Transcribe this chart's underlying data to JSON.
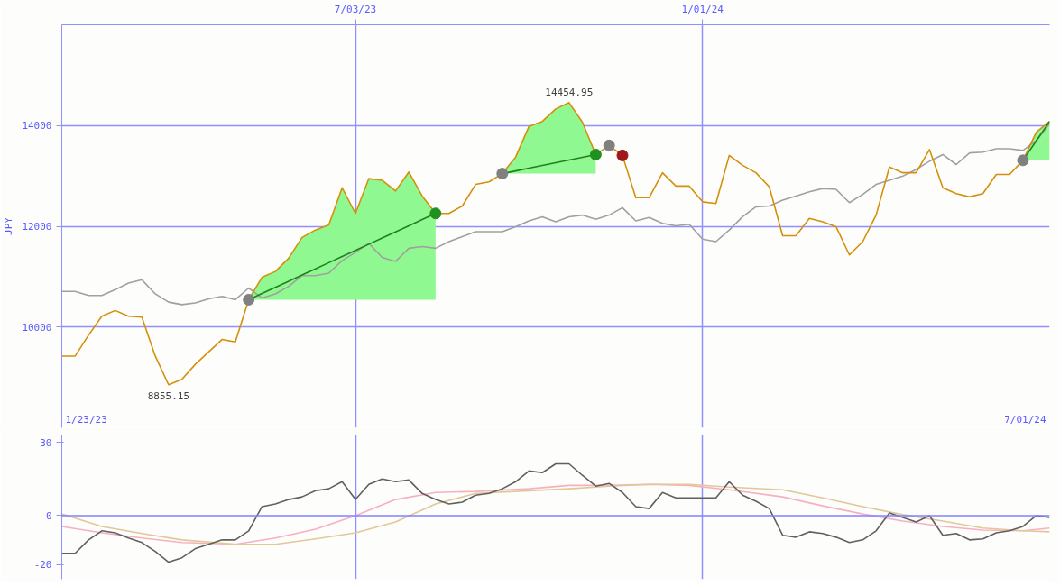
{
  "chart_data": [
    {
      "type": "line",
      "ylabel": "JPY",
      "x": [
        "2023-01-30",
        "2023-02-06",
        "2023-02-13",
        "2023-02-20",
        "2023-02-27",
        "2023-03-06",
        "2023-03-13",
        "2023-03-20",
        "2023-03-27",
        "2023-04-03",
        "2023-04-10",
        "2023-04-17",
        "2023-04-24",
        "2023-05-01",
        "2023-05-08",
        "2023-05-15",
        "2023-05-22",
        "2023-05-29",
        "2023-06-05",
        "2023-06-12",
        "2023-06-19",
        "2023-06-26",
        "2023-07-03",
        "2023-07-10",
        "2023-07-17",
        "2023-07-24",
        "2023-07-31",
        "2023-08-07",
        "2023-08-14",
        "2023-08-21",
        "2023-08-28",
        "2023-09-04",
        "2023-09-11",
        "2023-09-18",
        "2023-09-25",
        "2023-10-02",
        "2023-10-09",
        "2023-10-16",
        "2023-10-23",
        "2023-10-30",
        "2023-11-06",
        "2023-11-13",
        "2023-11-20",
        "2023-11-27",
        "2023-12-04",
        "2023-12-11",
        "2023-12-18",
        "2023-12-25",
        "2024-01-01",
        "2024-01-08",
        "2024-01-15",
        "2024-01-22",
        "2024-01-29",
        "2024-02-05",
        "2024-02-12",
        "2024-02-19",
        "2024-02-26",
        "2024-03-04",
        "2024-03-11",
        "2024-03-18",
        "2024-03-25",
        "2024-04-01",
        "2024-04-08",
        "2024-04-15",
        "2024-04-22",
        "2024-04-29",
        "2024-05-06",
        "2024-05-13",
        "2024-05-20",
        "2024-05-27",
        "2024-06-03",
        "2024-06-10",
        "2024-06-17",
        "2024-06-24",
        "2024-07-01"
      ],
      "xlim": [
        "2023-01-30",
        "2024-07-01"
      ],
      "xticks": [
        {
          "value": "2023-07-03",
          "label": "7/03/23"
        },
        {
          "value": "2024-01-01",
          "label": "1/01/24"
        }
      ],
      "ylim": [
        8000,
        16000
      ],
      "yticks": [
        10000,
        12000,
        14000
      ],
      "grid": true,
      "annotations": [
        {
          "text": "14454.95",
          "x": "2023-10-23",
          "y": 14455
        },
        {
          "text": "8855.15",
          "x": "2023-03-27",
          "y": 8855
        },
        "1/23/23",
        "7/01/24"
      ],
      "series": [
        {
          "type": "line",
          "color": "#a0a0a0",
          "values": [
            10708,
            10708,
            10626,
            10626,
            10741,
            10873,
            10938,
            10659,
            10494,
            10445,
            10478,
            10560,
            10609,
            10543,
            10774,
            10576,
            10659,
            10807,
            11021,
            11021,
            11070,
            11317,
            11482,
            11663,
            11383,
            11301,
            11564,
            11597,
            11564,
            11696,
            11794,
            11893,
            11893,
            11893,
            11992,
            12107,
            12189,
            12091,
            12189,
            12222,
            12140,
            12222,
            12370,
            12107,
            12173,
            12058,
            12008,
            12041,
            11745,
            11696,
            11926,
            12189,
            12387,
            12403,
            12519,
            12601,
            12683,
            12749,
            12733,
            12469,
            12634,
            12831,
            12914,
            12996,
            13128,
            13292,
            13424,
            13226,
            13457,
            13473,
            13539,
            13539,
            13506,
            13704,
            14033
          ]
        },
        {
          "type": "line",
          "color": "#d4900a",
          "values": [
            9424,
            9424,
            9836,
            10214,
            10329,
            10214,
            10198,
            9424,
            8855,
            8963,
            9260,
            9506,
            9753,
            9704,
            10543,
            10988,
            11103,
            11366,
            11778,
            11926,
            12025,
            12765,
            12255,
            12947,
            12914,
            12700,
            13078,
            12601,
            12255,
            12255,
            12403,
            12831,
            12881,
            13045,
            13375,
            13984,
            14082,
            14329,
            14455,
            14066,
            13424,
            13605,
            13407,
            12568,
            12568,
            13062,
            12798,
            12798,
            12486,
            12453,
            13407,
            13210,
            13062,
            12782,
            11811,
            11811,
            12156,
            12091,
            11992,
            11432,
            11696,
            12222,
            13177,
            13062,
            13062,
            13523,
            12765,
            12650,
            12584,
            12650,
            13029,
            13029,
            13309,
            13868,
            14082
          ]
        },
        {
          "type": "line",
          "color": "#208020",
          "x": [
            "2023-05-08",
            "2023-05-15",
            "2023-05-22",
            "2023-05-29",
            "2023-06-05",
            "2023-06-12",
            "2023-06-19",
            "2023-06-26",
            "2023-07-03",
            "2023-07-10",
            "2023-07-17",
            "2023-07-24",
            "2023-07-31",
            "2023-08-07",
            "2023-08-14"
          ],
          "values": [
            10543,
            10665,
            10788,
            10910,
            11032,
            11154,
            11277,
            11399,
            11521,
            11644,
            11766,
            11888,
            12010,
            12133,
            12255
          ],
          "lower": [
            10543,
            10543,
            10543,
            10543,
            10543,
            10543,
            10543,
            10543,
            10543,
            10543,
            10543,
            10543,
            10543,
            10543,
            10543
          ],
          "upper": [
            10543,
            10988,
            11103,
            11366,
            11778,
            11926,
            12025,
            12765,
            12255,
            12947,
            12914,
            12700,
            13078,
            12601,
            12255
          ]
        },
        {
          "type": "line",
          "color": "#208020",
          "x": [
            "2023-09-18",
            "2023-09-25",
            "2023-10-02",
            "2023-10-09",
            "2023-10-16",
            "2023-10-23",
            "2023-10-30",
            "2023-11-06"
          ],
          "values": [
            13045,
            13099,
            13153,
            13207,
            13262,
            13316,
            13370,
            13424
          ],
          "lower": [
            13045,
            13045,
            13045,
            13045,
            13045,
            13045,
            13045,
            13045
          ],
          "upper": [
            13045,
            13375,
            13984,
            14082,
            14329,
            14455,
            14066,
            13424
          ]
        },
        {
          "type": "line",
          "color": "#208020",
          "x": [
            "2024-06-17",
            "2024-06-24",
            "2024-07-01"
          ],
          "values": [
            13309,
            13696,
            14082
          ],
          "lower": [
            13309,
            13309,
            13309
          ],
          "upper": [
            13309,
            13868,
            14082
          ]
        },
        {
          "type": "scatter",
          "marker": "circle",
          "color": "#808080",
          "x": [
            "2023-05-08",
            "2023-09-18",
            "2023-11-13",
            "2024-06-17"
          ],
          "values": [
            10543,
            13045,
            13605,
            13309
          ]
        },
        {
          "type": "scatter",
          "marker": "circle",
          "color": "#209020",
          "x": [
            "2023-08-14",
            "2023-11-06"
          ],
          "values": [
            12255,
            13424
          ]
        },
        {
          "type": "scatter",
          "marker": "circle",
          "color": "#a01818",
          "x": [
            "2023-11-20"
          ],
          "values": [
            13407
          ]
        }
      ]
    },
    {
      "type": "line",
      "x": [
        "2023-01-30",
        "2023-02-06",
        "2023-02-13",
        "2023-02-20",
        "2023-02-27",
        "2023-03-06",
        "2023-03-13",
        "2023-03-20",
        "2023-03-27",
        "2023-04-03",
        "2023-04-10",
        "2023-04-17",
        "2023-04-24",
        "2023-05-01",
        "2023-05-08",
        "2023-05-15",
        "2023-05-22",
        "2023-05-29",
        "2023-06-05",
        "2023-06-12",
        "2023-06-19",
        "2023-06-26",
        "2023-07-03",
        "2023-07-10",
        "2023-07-17",
        "2023-07-24",
        "2023-07-31",
        "2023-08-07",
        "2023-08-14",
        "2023-08-21",
        "2023-08-28",
        "2023-09-04",
        "2023-09-11",
        "2023-09-18",
        "2023-09-25",
        "2023-10-02",
        "2023-10-09",
        "2023-10-16",
        "2023-10-23",
        "2023-10-30",
        "2023-11-06",
        "2023-11-13",
        "2023-11-20",
        "2023-11-27",
        "2023-12-04",
        "2023-12-11",
        "2023-12-18",
        "2023-12-25",
        "2024-01-01",
        "2024-01-08",
        "2024-01-15",
        "2024-01-22",
        "2024-01-29",
        "2024-02-05",
        "2024-02-12",
        "2024-02-19",
        "2024-02-26",
        "2024-03-04",
        "2024-03-11",
        "2024-03-18",
        "2024-03-25",
        "2024-04-01",
        "2024-04-08",
        "2024-04-15",
        "2024-04-22",
        "2024-04-29",
        "2024-05-06",
        "2024-05-13",
        "2024-05-20",
        "2024-05-27",
        "2024-06-03",
        "2024-06-10",
        "2024-06-17",
        "2024-06-24",
        "2024-07-01"
      ],
      "xlim": [
        "2023-01-30",
        "2024-07-01"
      ],
      "xticks": [
        {
          "value": "2023-07-03",
          "label": null
        },
        {
          "value": "2024-01-01",
          "label": null
        }
      ],
      "ylim": [
        -26,
        33
      ],
      "yticks": [
        -20,
        0,
        30
      ],
      "grid": "x",
      "tick_labels": "y",
      "ref_lines": [
        {
          "axis": "y",
          "value": 0,
          "color": "#8080ff"
        }
      ],
      "series": [
        {
          "color": "#f8b0c0",
          "x": [
            "2023-01-30",
            "2023-02-20",
            "2023-03-13",
            "2023-04-03",
            "2023-05-01",
            "2023-05-22",
            "2023-06-12",
            "2023-07-03",
            "2023-07-24",
            "2023-08-14",
            "2023-09-04",
            "2023-10-02",
            "2023-10-23",
            "2023-11-13",
            "2023-12-04",
            "2023-12-25",
            "2024-01-15",
            "2024-02-12",
            "2024-03-04",
            "2024-03-25",
            "2024-04-15",
            "2024-05-06",
            "2024-05-27",
            "2024-06-17",
            "2024-07-01"
          ],
          "values": [
            -4.4,
            -7.0,
            -9.1,
            -11.0,
            -11.7,
            -9.1,
            -5.5,
            0,
            6.6,
            9.5,
            9.9,
            11.0,
            12.4,
            12.4,
            12.8,
            12.4,
            10.6,
            7.7,
            4.0,
            0.7,
            -2.2,
            -4.4,
            -5.9,
            -6.2,
            -5.1
          ]
        },
        {
          "color": "#e0c898",
          "x": [
            "2023-01-30",
            "2023-02-20",
            "2023-03-13",
            "2023-04-03",
            "2023-05-01",
            "2023-05-22",
            "2023-06-12",
            "2023-07-03",
            "2023-07-24",
            "2023-08-14",
            "2023-09-04",
            "2023-10-02",
            "2023-10-23",
            "2023-11-13",
            "2023-12-04",
            "2023-12-25",
            "2024-01-15",
            "2024-02-12",
            "2024-03-04",
            "2024-03-25",
            "2024-04-15",
            "2024-05-06",
            "2024-05-27",
            "2024-06-17",
            "2024-07-01"
          ],
          "values": [
            0.7,
            -4.4,
            -7.3,
            -9.9,
            -11.7,
            -11.7,
            -9.5,
            -7.0,
            -2.6,
            4.8,
            9.1,
            10.2,
            11.0,
            12.1,
            12.8,
            12.8,
            11.7,
            10.6,
            7.3,
            3.7,
            0.4,
            -2.2,
            -5.1,
            -6.2,
            -6.6
          ]
        },
        {
          "color": "#606060",
          "values": [
            -15.4,
            -15.4,
            -9.9,
            -6.2,
            -7.0,
            -9.1,
            -11.0,
            -14.6,
            -19.0,
            -17.2,
            -13.5,
            -11.7,
            -9.9,
            -9.9,
            -6.2,
            3.7,
            4.8,
            6.6,
            7.7,
            10.2,
            11.0,
            13.9,
            6.6,
            12.8,
            15.0,
            13.9,
            14.6,
            9.1,
            6.6,
            4.8,
            5.5,
            8.4,
            9.1,
            11.0,
            13.9,
            18.3,
            17.6,
            21.2,
            21.2,
            16.5,
            12.1,
            13.2,
            9.5,
            3.7,
            2.9,
            9.5,
            7.3,
            7.3,
            7.3,
            7.3,
            13.9,
            8.4,
            5.9,
            2.9,
            -8.0,
            -8.8,
            -6.6,
            -7.3,
            -8.8,
            -11.0,
            -9.9,
            -6.2,
            1.1,
            -0.7,
            -2.6,
            0,
            -8.0,
            -7.3,
            -9.9,
            -9.5,
            -7.0,
            -6.2,
            -4.4,
            0,
            -0.7
          ]
        }
      ]
    }
  ]
}
